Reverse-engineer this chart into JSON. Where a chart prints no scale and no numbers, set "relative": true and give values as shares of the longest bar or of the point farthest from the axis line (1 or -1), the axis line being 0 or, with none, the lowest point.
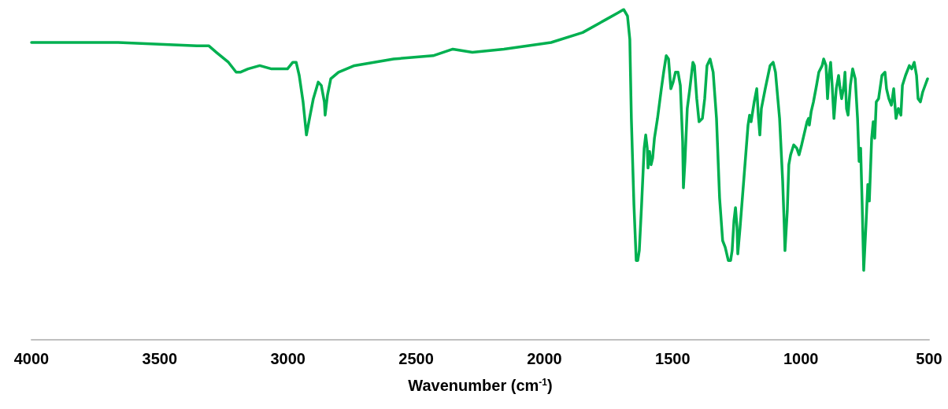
{
  "chart_data": {
    "type": "line",
    "xlabel": "Wavenumber (cm$^{-1}$)",
    "relative": true,
    "marker": "none",
    "line_style": "solid",
    "grid": false,
    "xlim": [
      4000,
      500
    ],
    "xticks": [
      4000,
      3500,
      3000,
      2500,
      2000,
      1500,
      1000,
      500
    ],
    "series": [
      {
        "color": "#00b050",
        "x": [
          4000,
          3662,
          3355,
          3309,
          3279,
          3232,
          3202,
          3186,
          3156,
          3110,
          3064,
          3033,
          3002,
          2981,
          2968,
          2956,
          2941,
          2928,
          2916,
          2901,
          2882,
          2870,
          2858,
          2855,
          2846,
          2833,
          2803,
          2741,
          2588,
          2434,
          2357,
          2281,
          2158,
          1974,
          1851,
          1759,
          1713,
          1691,
          1676,
          1667,
          1661,
          1651,
          1642,
          1636,
          1630,
          1621,
          1611,
          1605,
          1599,
          1596,
          1590,
          1584,
          1578,
          1571,
          1559,
          1544,
          1535,
          1525,
          1516,
          1507,
          1498,
          1489,
          1479,
          1470,
          1461,
          1458,
          1452,
          1443,
          1433,
          1421,
          1415,
          1406,
          1397,
          1384,
          1375,
          1366,
          1354,
          1342,
          1329,
          1317,
          1305,
          1295,
          1283,
          1274,
          1268,
          1261,
          1255,
          1249,
          1246,
          1237,
          1221,
          1206,
          1200,
          1194,
          1182,
          1172,
          1166,
          1160,
          1154,
          1139,
          1120,
          1108,
          1099,
          1083,
          1071,
          1065,
          1062,
          1053,
          1047,
          1040,
          1028,
          1016,
          1007,
          997,
          985,
          976,
          970,
          967,
          960,
          951,
          939,
          930,
          917,
          911,
          902,
          896,
          890,
          884,
          878,
          871,
          862,
          853,
          847,
          841,
          832,
          828,
          822,
          816,
          807,
          798,
          788,
          779,
          773,
          767,
          761,
          755,
          746,
          739,
          733,
          724,
          718,
          712,
          706,
          697,
          684,
          672,
          666,
          657,
          647,
          638,
          629,
          620,
          610,
          604,
          592,
          577,
          568,
          558,
          549,
          543,
          534,
          525,
          506
        ],
        "values": [
          0.9,
          0.9,
          0.89,
          0.89,
          0.87,
          0.84,
          0.81,
          0.81,
          0.82,
          0.83,
          0.82,
          0.82,
          0.82,
          0.84,
          0.84,
          0.8,
          0.72,
          0.62,
          0.67,
          0.73,
          0.78,
          0.77,
          0.72,
          0.68,
          0.74,
          0.79,
          0.81,
          0.83,
          0.85,
          0.86,
          0.88,
          0.87,
          0.88,
          0.9,
          0.93,
          0.97,
          0.99,
          1,
          0.98,
          0.91,
          0.67,
          0.41,
          0.24,
          0.24,
          0.27,
          0.41,
          0.58,
          0.62,
          0.58,
          0.52,
          0.57,
          0.53,
          0.55,
          0.61,
          0.67,
          0.76,
          0.81,
          0.86,
          0.85,
          0.76,
          0.78,
          0.81,
          0.81,
          0.77,
          0.6,
          0.46,
          0.54,
          0.7,
          0.76,
          0.84,
          0.83,
          0.73,
          0.66,
          0.67,
          0.73,
          0.83,
          0.85,
          0.81,
          0.67,
          0.43,
          0.3,
          0.28,
          0.24,
          0.24,
          0.27,
          0.36,
          0.4,
          0.34,
          0.26,
          0.34,
          0.5,
          0.65,
          0.68,
          0.66,
          0.72,
          0.76,
          0.68,
          0.62,
          0.7,
          0.76,
          0.83,
          0.84,
          0.81,
          0.67,
          0.48,
          0.35,
          0.27,
          0.39,
          0.53,
          0.56,
          0.59,
          0.58,
          0.56,
          0.59,
          0.63,
          0.66,
          0.67,
          0.65,
          0.69,
          0.72,
          0.77,
          0.81,
          0.83,
          0.85,
          0.83,
          0.73,
          0.8,
          0.84,
          0.77,
          0.67,
          0.76,
          0.8,
          0.76,
          0.73,
          0.77,
          0.81,
          0.7,
          0.68,
          0.77,
          0.82,
          0.79,
          0.67,
          0.54,
          0.58,
          0.41,
          0.21,
          0.35,
          0.47,
          0.42,
          0.61,
          0.66,
          0.61,
          0.72,
          0.73,
          0.8,
          0.81,
          0.76,
          0.73,
          0.71,
          0.76,
          0.67,
          0.7,
          0.68,
          0.77,
          0.8,
          0.83,
          0.82,
          0.84,
          0.8,
          0.73,
          0.72,
          0.75,
          0.79
        ]
      }
    ]
  }
}
